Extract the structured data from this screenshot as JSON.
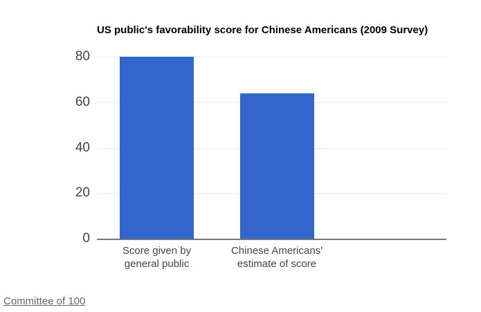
{
  "chart_data": {
    "type": "bar",
    "title": "US public's favorability score for Chinese Americans (2009 Survey)",
    "categories": [
      "Score given by\ngeneral public",
      "Chinese Americans'\nestimate of score"
    ],
    "values": [
      80,
      64
    ],
    "xlabel": "",
    "ylabel": "",
    "ylim": [
      0,
      80
    ],
    "yticks": [
      0,
      20,
      40,
      60,
      80
    ],
    "legend_position": "none",
    "grid": true,
    "bar_color": "#3366cc",
    "gridline_color": "#e6e6e6",
    "baseline_color": "#777777",
    "tick_label_color": "#444444",
    "title_color": "#000000"
  },
  "source": {
    "label": "Committee of 100"
  }
}
